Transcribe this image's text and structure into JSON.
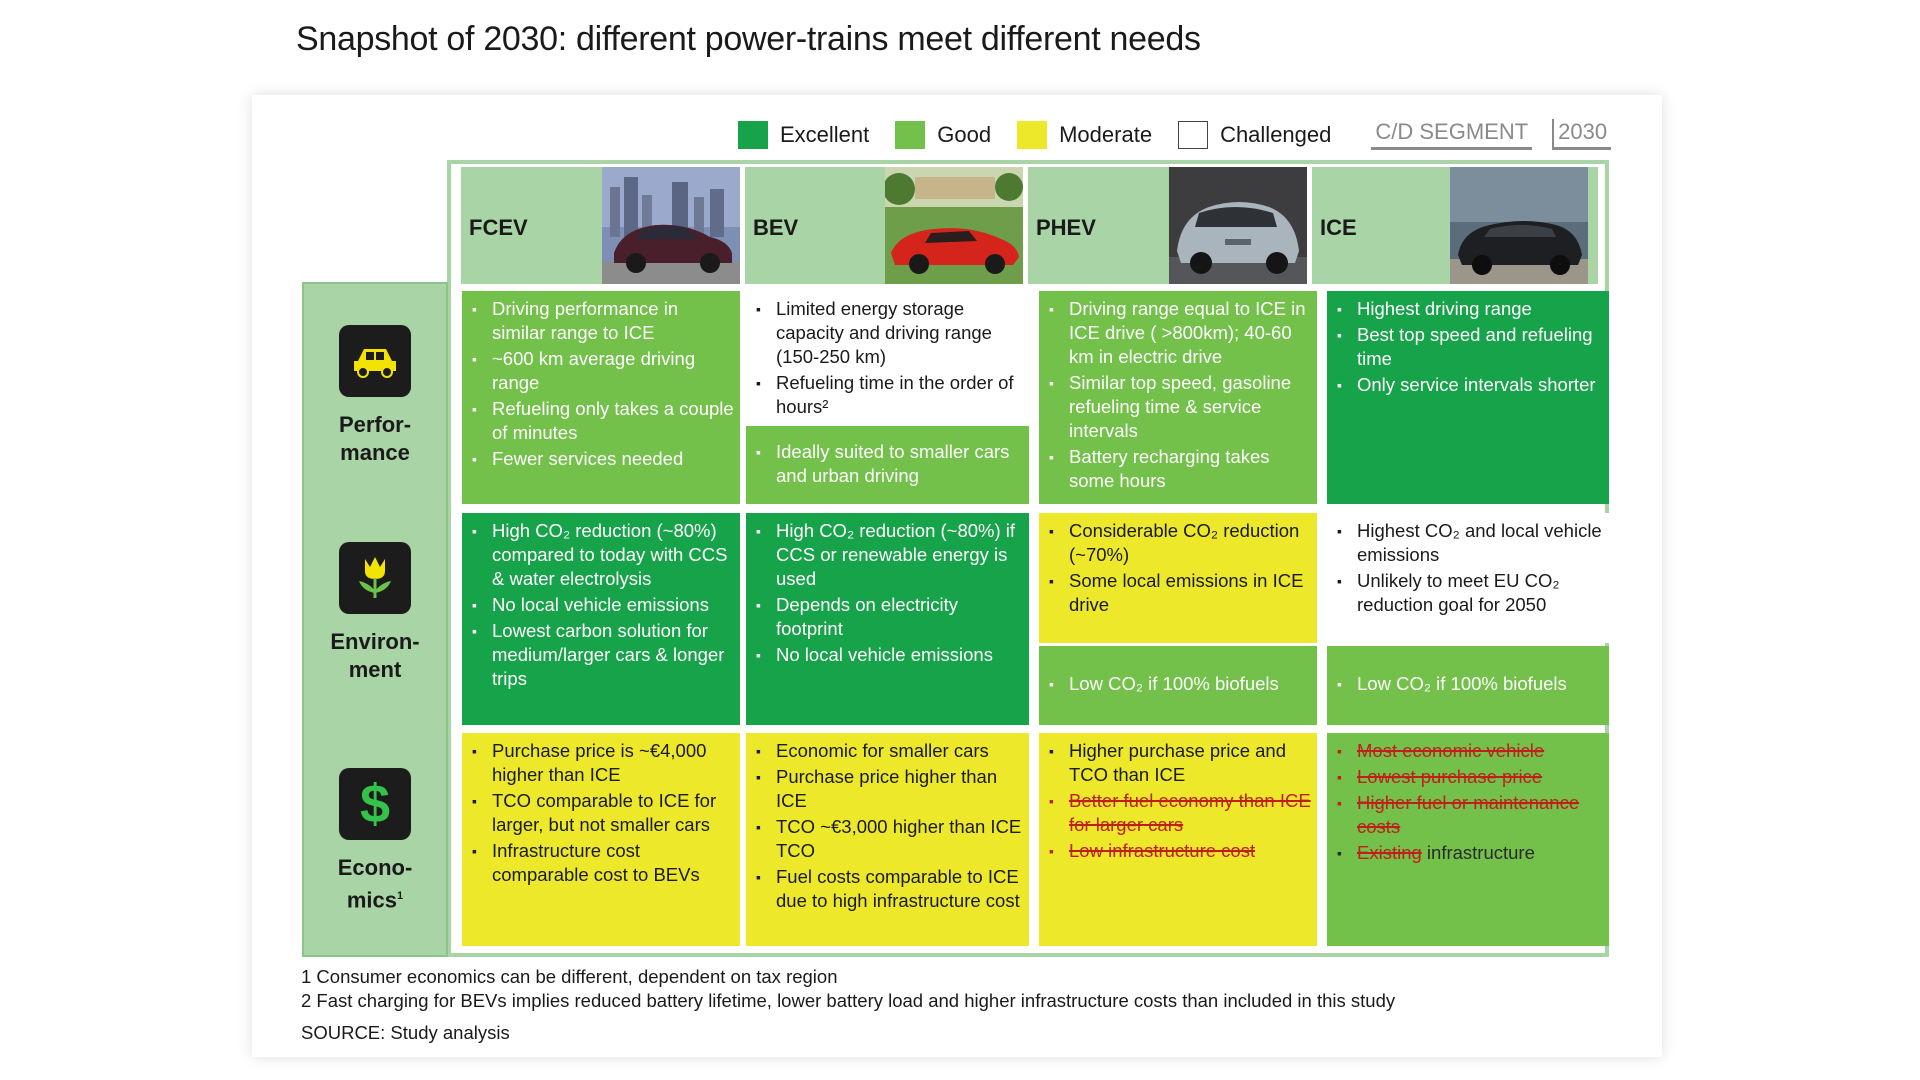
{
  "title": "Snapshot of 2030: different power-trains meet different needs",
  "legend": {
    "excellent": "Excellent",
    "good": "Good",
    "moderate": "Moderate",
    "challenged": "Challenged",
    "segment": "C/D SEGMENT",
    "year": "2030"
  },
  "colors": {
    "excellent": "#17a34a",
    "good": "#73c04a",
    "moderate": "#ede92a",
    "challenged": "#ffffff",
    "header_bg": "#a9d5a6",
    "strike": "#c0201b"
  },
  "columns": [
    {
      "name": "FCEV",
      "icon": "sedan-photo"
    },
    {
      "name": "BEV",
      "icon": "red-roadster-photo"
    },
    {
      "name": "PHEV",
      "icon": "silver-hatchback-photo"
    },
    {
      "name": "ICE",
      "icon": "dark-sedan-photo"
    }
  ],
  "categories": [
    {
      "label1": "Perfor-",
      "label2": "mance",
      "icon": "car-icon"
    },
    {
      "label1": "Environ-",
      "label2": "ment",
      "icon": "flower-icon"
    },
    {
      "label1": "Econo-",
      "label2": "mics",
      "sup": "1",
      "icon": "dollar-icon"
    }
  ],
  "cells": {
    "perf_fcev": [
      "Driving performance in similar range to ICE",
      "~600 km average driving range",
      "Refueling only takes a couple of minutes",
      "Fewer services needed"
    ],
    "perf_bev_a": [
      "Limited energy storage capacity and driving range (150-250 km)",
      "Refueling time in the order of hours²"
    ],
    "perf_bev_b": [
      "Ideally suited to smaller cars and urban driving"
    ],
    "perf_phev": [
      "Driving range equal to ICE in ICE drive ( >800km); 40-60 km in electric drive",
      "Similar top speed, gasoline refueling time & service intervals",
      "Battery recharging takes some hours"
    ],
    "perf_ice": [
      "Highest driving range",
      "Best top speed and refueling time",
      "Only service intervals shorter"
    ],
    "env_fcev": [
      "High CO₂ reduction (~80%) compared to today with CCS & water electrolysis",
      "No local vehicle emissions",
      "Lowest carbon solution for medium/larger cars & longer trips"
    ],
    "env_bev": [
      "High CO₂ reduction (~80%) if CCS or renewable energy is used",
      "Depends on electricity footprint",
      "No local vehicle emissions"
    ],
    "env_phev_a": [
      "Considerable CO₂ reduction (~70%)",
      "Some local emissions in ICE drive"
    ],
    "env_phev_b": [
      "Low CO₂ if 100% biofuels"
    ],
    "env_ice_a": [
      "Highest CO₂ and local vehicle emissions",
      "Unlikely to meet EU CO₂ reduction goal for 2050"
    ],
    "env_ice_b": [
      "Low CO₂ if 100% biofuels"
    ],
    "eco_fcev": [
      "Purchase price is ~€4,000 higher than ICE",
      "TCO comparable to ICE  for larger, but not smaller cars",
      "Infrastructure cost comparable cost to BEVs"
    ],
    "eco_bev": [
      "Economic for smaller cars",
      "Purchase price higher than ICE",
      "TCO ~€3,000 higher than ICE TCO",
      "Fuel costs comparable to ICE due to high infrastructure cost"
    ],
    "eco_phev": [
      "Higher purchase price and TCO than ICE"
    ],
    "eco_phev_struck": [
      "Better fuel economy than ICE for larger cars",
      "Low infrastructure cost"
    ],
    "eco_ice_struck": [
      "Most economic vehicle",
      "Lowest purchase price",
      "Higher fuel or maintenance costs"
    ],
    "eco_ice_existing_struck": "Existing",
    "eco_ice_existing_rest": " infrastructure"
  },
  "footnotes": {
    "f1": "1 Consumer economics can be different, dependent on tax region",
    "f2": "2 Fast charging for BEVs implies reduced battery lifetime, lower battery load and higher infrastructure costs than included in this study",
    "source": "SOURCE: Study analysis"
  }
}
